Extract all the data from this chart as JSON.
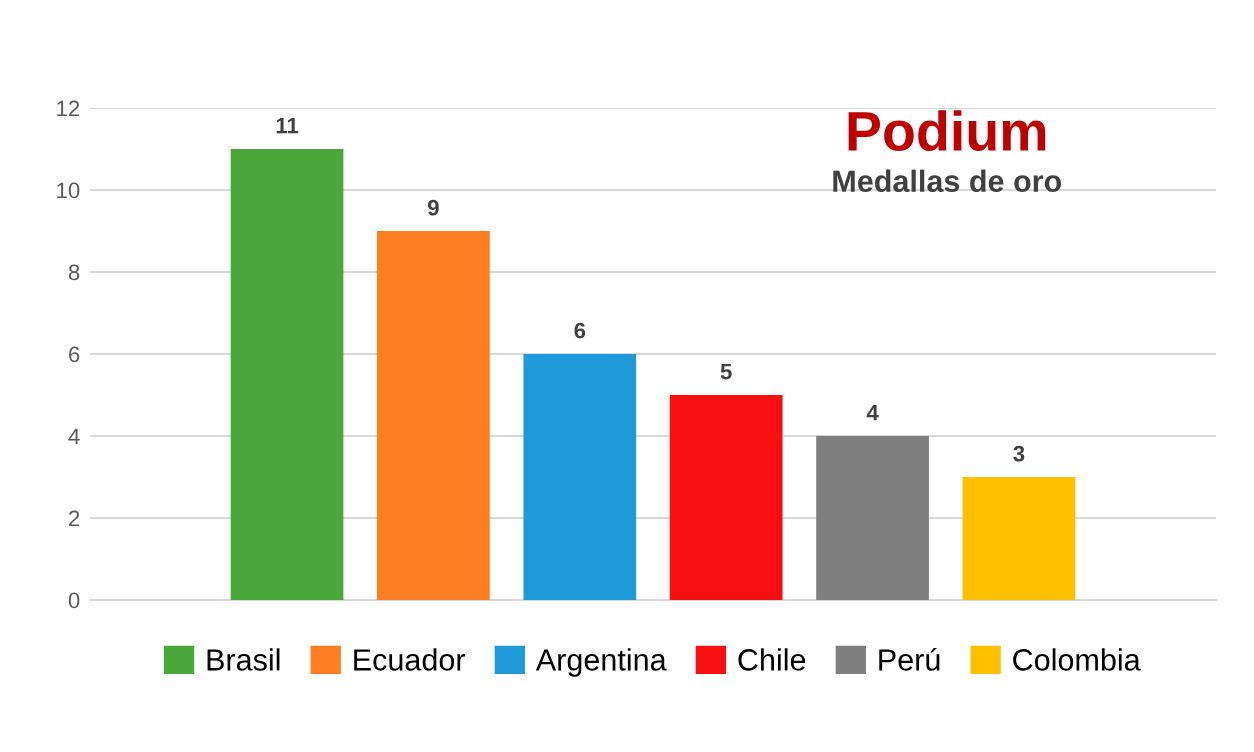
{
  "chart_data": {
    "type": "bar",
    "title": "Podium",
    "subtitle": "Medallas de oro",
    "categories": [
      null
    ],
    "series": [
      {
        "name": "Brasil",
        "color": "#4aa83a",
        "values": [
          11
        ]
      },
      {
        "name": "Ecuador",
        "color": "#fd7f22",
        "values": [
          9
        ]
      },
      {
        "name": "Argentina",
        "color": "#1e9ad8",
        "values": [
          6
        ]
      },
      {
        "name": "Chile",
        "color": "#f81010",
        "values": [
          5
        ]
      },
      {
        "name": "Perú",
        "color": "#7f7f7f",
        "values": [
          4
        ]
      },
      {
        "name": "Colombia",
        "color": "#ffc000",
        "values": [
          3
        ]
      }
    ],
    "ylim": [
      0,
      12
    ],
    "yticks": [
      0,
      2,
      4,
      6,
      8,
      10,
      12
    ],
    "grid": "y",
    "legend": "bottom",
    "data_labels": true,
    "tick_labels": "y"
  }
}
